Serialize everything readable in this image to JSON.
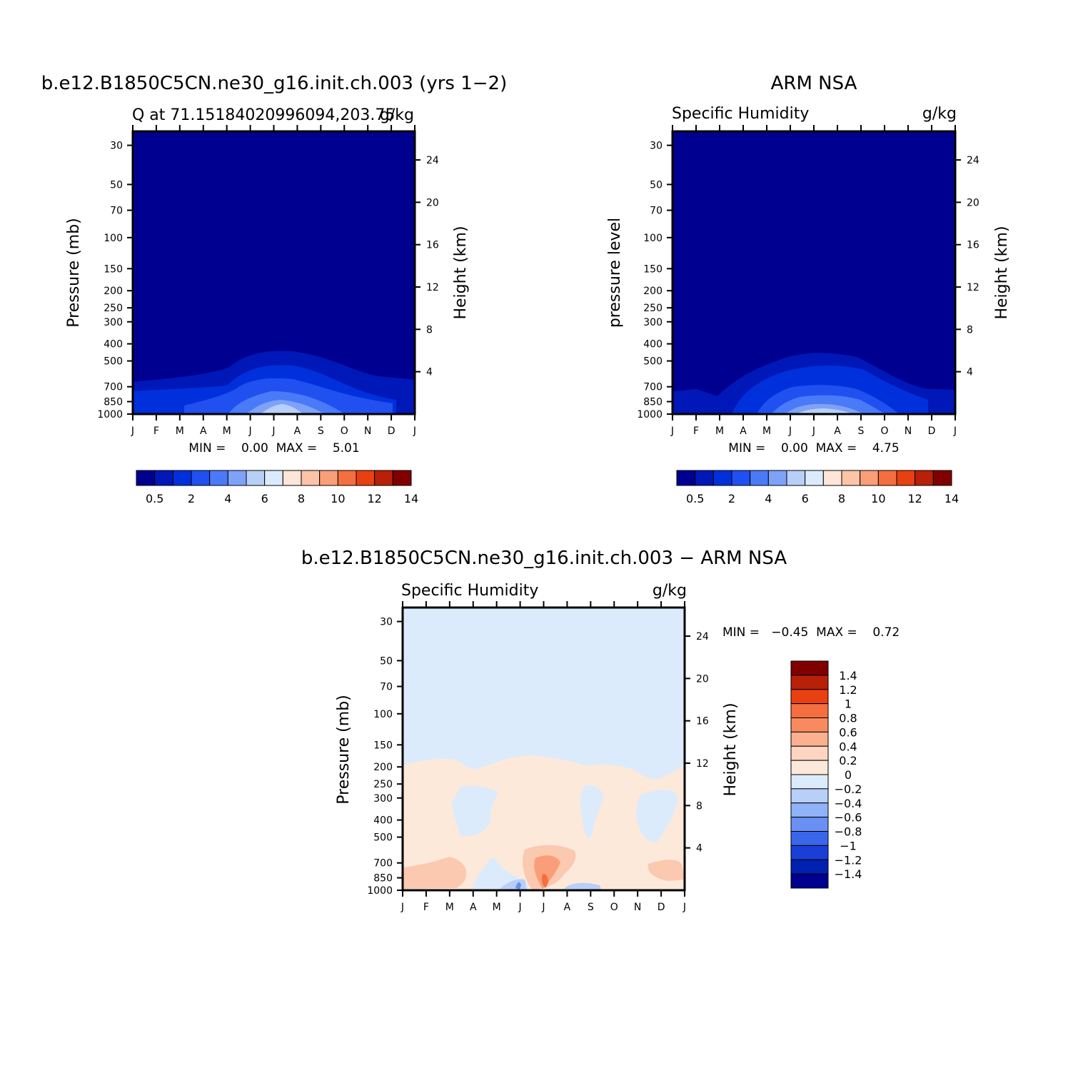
{
  "chart_data": [
    {
      "type": "heatmap",
      "title": "b.e12.B1850C5CN.ne30_g16.init.ch.003 (yrs 1−2)",
      "subtitle_left": "Q at 71.15184020996094,203.75",
      "subtitle_right": "g/kg",
      "ylabel": "Pressure (mb)",
      "ylabel_right": "Height (km)",
      "minmax": "MIN =    0.00  MAX =    5.01",
      "x": [
        "J",
        "F",
        "M",
        "A",
        "M",
        "J",
        "J",
        "A",
        "S",
        "O",
        "N",
        "D",
        "J"
      ],
      "y_ticks": [
        "30",
        "50",
        "70",
        "100",
        "150",
        "200",
        "250",
        "300",
        "400",
        "500",
        "700",
        "850",
        "1000"
      ],
      "y2_ticks": [
        "24",
        "20",
        "16",
        "12",
        "8",
        "4"
      ],
      "colorbar_labels": [
        "0.5",
        "2",
        "4",
        "6",
        "8",
        "10",
        "12",
        "14"
      ],
      "colors": [
        "#000090",
        "#0018b8",
        "#0030dc",
        "#2050f0",
        "#4a7af8",
        "#7ea2f8",
        "#b8cff8",
        "#dcebfb",
        "#fde5d8",
        "#fbc3a8",
        "#f99e78",
        "#f56e40",
        "#e84010",
        "#b82008",
        "#800000"
      ]
    },
    {
      "type": "heatmap",
      "title": "ARM NSA",
      "subtitle_left": "Specific Humidity",
      "subtitle_right": "g/kg",
      "ylabel": "pressure level",
      "ylabel_right": "Height (km)",
      "minmax": "MIN =    0.00  MAX =    4.75",
      "x": [
        "J",
        "F",
        "M",
        "A",
        "M",
        "J",
        "J",
        "A",
        "S",
        "O",
        "N",
        "D",
        "J"
      ],
      "y_ticks": [
        "30",
        "50",
        "70",
        "100",
        "150",
        "200",
        "250",
        "300",
        "400",
        "500",
        "700",
        "850",
        "1000"
      ],
      "y2_ticks": [
        "24",
        "20",
        "16",
        "12",
        "8",
        "4"
      ],
      "colorbar_labels": [
        "0.5",
        "2",
        "4",
        "6",
        "8",
        "10",
        "12",
        "14"
      ]
    },
    {
      "type": "heatmap",
      "title": "b.e12.B1850C5CN.ne30_g16.init.ch.003 − ARM NSA",
      "subtitle_left": "Specific Humidity",
      "subtitle_right": "g/kg",
      "ylabel": "Pressure (mb)",
      "ylabel_right": "Height (km)",
      "minmax": "MIN =   −0.45  MAX =    0.72",
      "x": [
        "J",
        "F",
        "M",
        "A",
        "M",
        "J",
        "J",
        "A",
        "S",
        "O",
        "N",
        "D",
        "J"
      ],
      "y_ticks": [
        "30",
        "50",
        "70",
        "100",
        "150",
        "200",
        "250",
        "300",
        "400",
        "500",
        "700",
        "850",
        "1000"
      ],
      "y2_ticks": [
        "24",
        "20",
        "16",
        "12",
        "8",
        "4"
      ],
      "colorbar_labels": [
        "1.4",
        "1.2",
        "1",
        "0.8",
        "0.6",
        "0.4",
        "0.2",
        "0",
        "−0.2",
        "−0.4",
        "−0.6",
        "−0.8",
        "−1",
        "−1.2",
        "−1.4"
      ],
      "colors": [
        "#800000",
        "#b82008",
        "#e84010",
        "#f56e40",
        "#f98a60",
        "#fbb090",
        "#fdd5c0",
        "#fde9da",
        "#dcebfb",
        "#b8cff8",
        "#90b2f8",
        "#6a90f4",
        "#3a66ec",
        "#1a3ed8",
        "#0020b0",
        "#000090"
      ]
    }
  ]
}
